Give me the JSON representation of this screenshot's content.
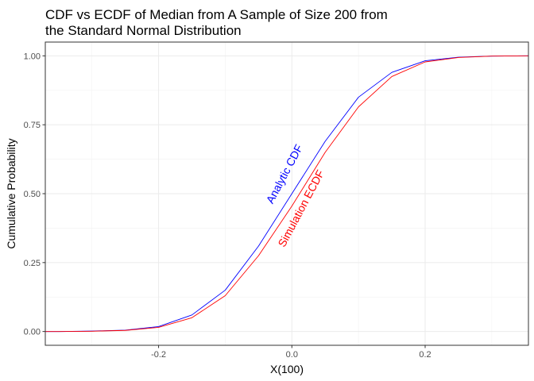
{
  "chart_data": {
    "type": "line",
    "title_lines": [
      "CDF vs ECDF of Median from A Sample of Size 200 from",
      "the Standard Normal Distribution"
    ],
    "xlabel": "X(100)",
    "ylabel": "Cumulative Probability",
    "xlim": [
      -0.37,
      0.355
    ],
    "ylim": [
      -0.05,
      1.05
    ],
    "x_ticks": [
      -0.2,
      0.0,
      0.2
    ],
    "x_tick_labels": [
      "-0.2",
      "0.0",
      "0.2"
    ],
    "y_ticks": [
      0.0,
      0.25,
      0.5,
      0.75,
      1.0
    ],
    "y_tick_labels": [
      "0.00",
      "0.25",
      "0.50",
      "0.75",
      "1.00"
    ],
    "grid": true,
    "series": [
      {
        "label": "Analytic CDF",
        "color": "#0000ff",
        "label_anchor": [
          -0.01,
          0.57
        ],
        "x": [
          -0.37,
          -0.35,
          -0.3,
          -0.25,
          -0.2,
          -0.15,
          -0.1,
          -0.05,
          0.0,
          0.05,
          0.1,
          0.15,
          0.2,
          0.25,
          0.3,
          0.355
        ],
        "y": [
          0.0,
          0.0,
          0.0015,
          0.005,
          0.018,
          0.06,
          0.15,
          0.31,
          0.5,
          0.69,
          0.85,
          0.94,
          0.982,
          0.995,
          0.999,
          1.0
        ]
      },
      {
        "label": "Simulation ECDF",
        "color": "#ff0000",
        "label_anchor": [
          0.015,
          0.445
        ],
        "x": [
          -0.37,
          -0.35,
          -0.3,
          -0.25,
          -0.2,
          -0.15,
          -0.1,
          -0.05,
          0.0,
          0.05,
          0.1,
          0.15,
          0.2,
          0.25,
          0.3,
          0.355
        ],
        "y": [
          0.0,
          0.0,
          0.001,
          0.004,
          0.015,
          0.05,
          0.13,
          0.275,
          0.455,
          0.65,
          0.815,
          0.925,
          0.978,
          0.994,
          0.999,
          1.0
        ]
      }
    ]
  }
}
